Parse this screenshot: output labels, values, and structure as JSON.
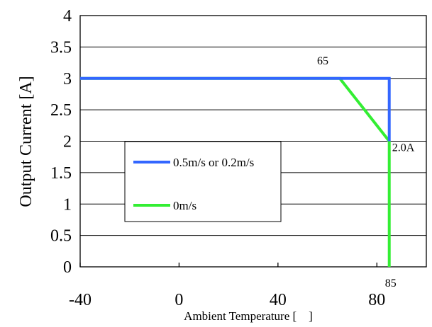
{
  "chart_data": {
    "type": "line",
    "xlabel": "Ambient Temperature [　]",
    "ylabel": "Output Current [A]",
    "xlim": [
      -40,
      100
    ],
    "ylim": [
      0,
      4
    ],
    "x_ticks": [
      -40,
      0,
      40,
      80
    ],
    "y_ticks": [
      0,
      0.5,
      1,
      1.5,
      2,
      2.5,
      3,
      3.5,
      4
    ],
    "x_tick_labels": [
      "-40",
      "0",
      "40",
      "80"
    ],
    "y_tick_labels": [
      "0",
      "0.5",
      "1",
      "1.5",
      "2",
      "2.5",
      "3",
      "3.5",
      "4"
    ],
    "grid": "horizontal",
    "legend_position": "lower-left",
    "series": [
      {
        "name": "0.5m/s or 0.2m/s",
        "color": "#3366ff",
        "points": [
          [
            -40,
            3
          ],
          [
            85,
            3
          ],
          [
            85,
            2
          ]
        ]
      },
      {
        "name": "0m/s",
        "color": "#33ee33",
        "points": [
          [
            -40,
            3
          ],
          [
            65,
            3
          ],
          [
            85,
            2
          ],
          [
            85,
            0
          ]
        ]
      }
    ],
    "annotations": [
      {
        "text": "65",
        "x": 65,
        "y": 3
      },
      {
        "text": "2.0A",
        "x": 85,
        "y": 2
      },
      {
        "text": "85",
        "x": 85,
        "y": 0
      }
    ]
  }
}
